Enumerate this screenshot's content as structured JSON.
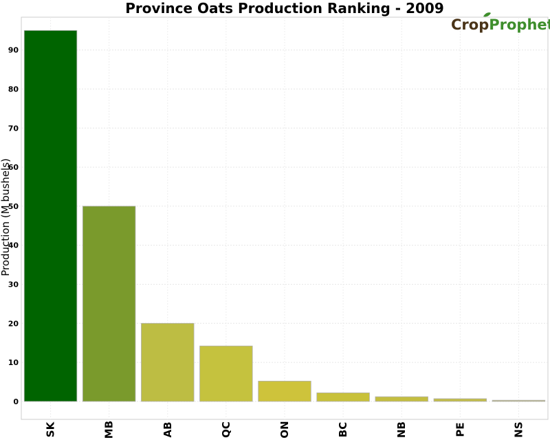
{
  "logo": {
    "text_1": "Crop",
    "text_2": "Prophet"
  },
  "chart_data": {
    "type": "bar",
    "title": "Province Oats Production Ranking - 2009",
    "xlabel": "",
    "ylabel": "Production (M bushels)",
    "categories": [
      "SK",
      "MB",
      "AB",
      "QC",
      "ON",
      "BC",
      "NB",
      "PE",
      "NS"
    ],
    "values": [
      95.0,
      50.0,
      20.0,
      14.2,
      5.2,
      2.2,
      1.2,
      0.7,
      0.3
    ],
    "colors": [
      "#006400",
      "#7a9a2c",
      "#bdbd43",
      "#c5c23e",
      "#cec33b",
      "#c8c13a",
      "#c4be40",
      "#c2bc49",
      "#bcb880"
    ],
    "yticks": [
      0,
      10,
      20,
      30,
      40,
      50,
      60,
      70,
      80,
      90
    ],
    "ylim": [
      -4.6,
      98.4
    ],
    "grid": true,
    "legend": "none"
  }
}
